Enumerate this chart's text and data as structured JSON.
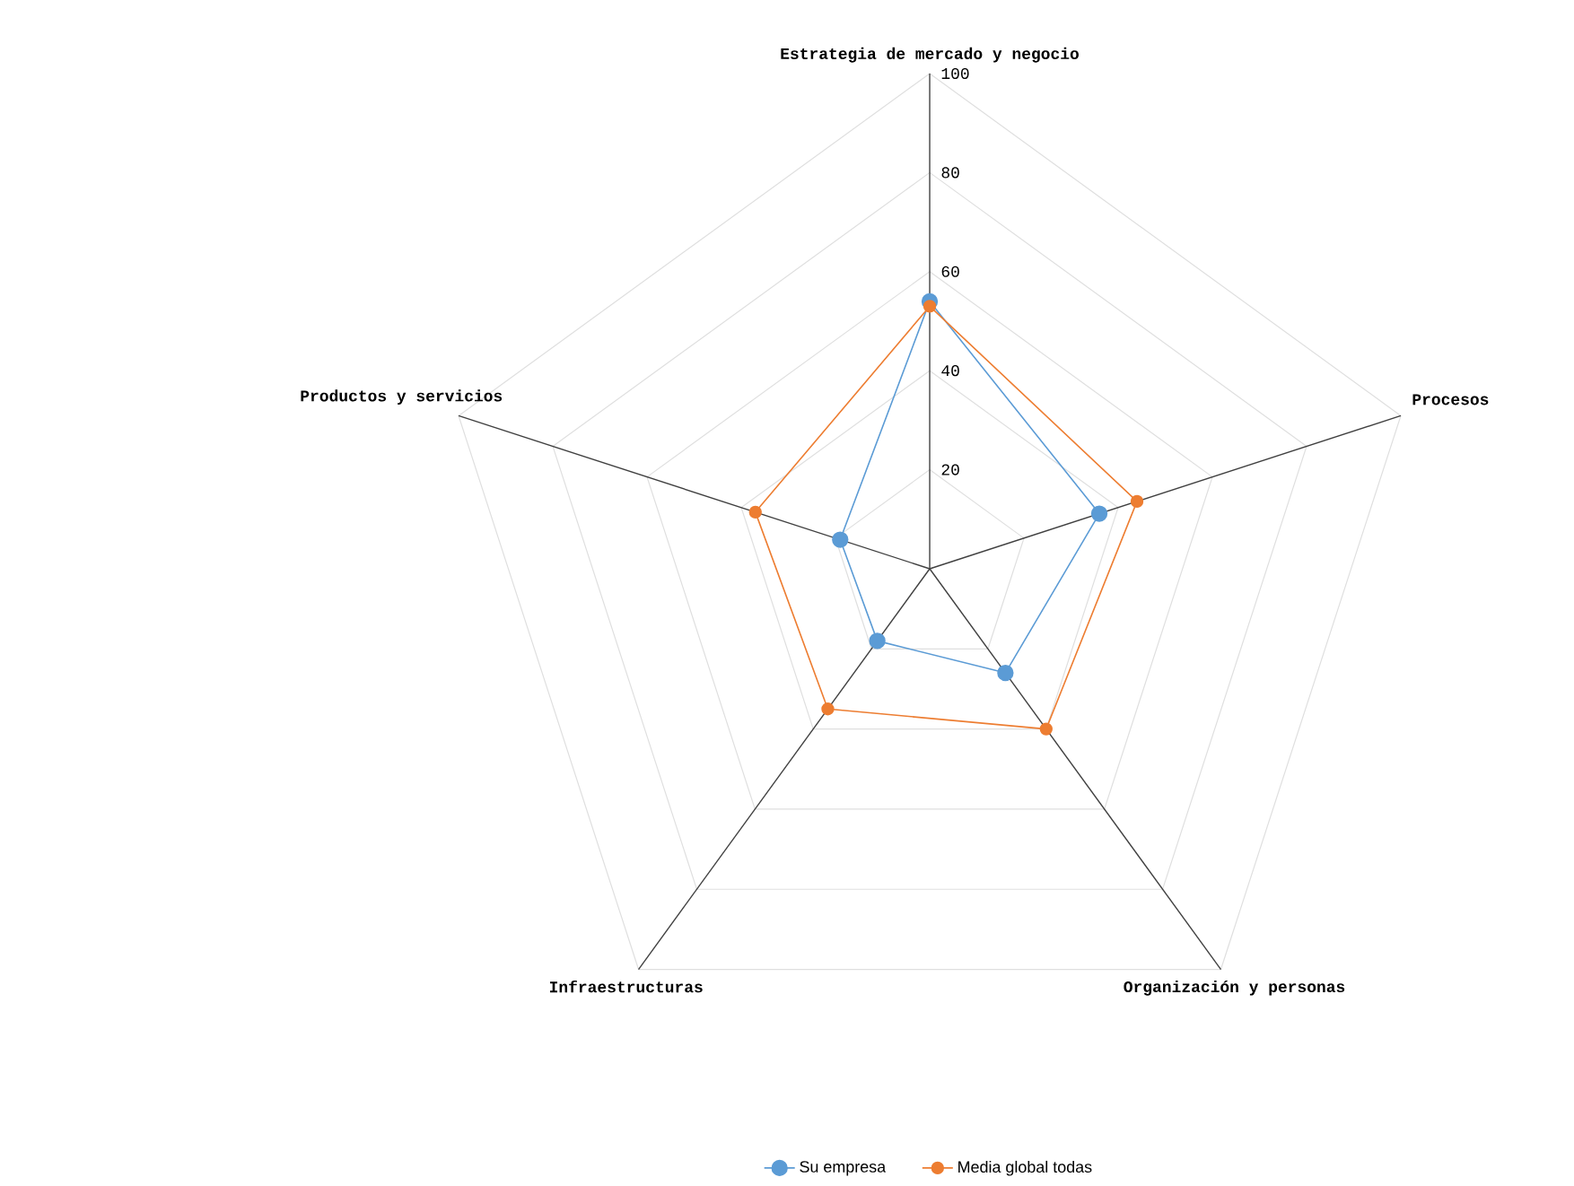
{
  "chart_data": {
    "type": "radar",
    "categories": [
      "Estrategia de mercado y negocio",
      "Procesos",
      "Organización y personas",
      "Infraestructuras",
      "Productos y servicios"
    ],
    "series": [
      {
        "name": "Su empresa",
        "color": "#5b9bd5",
        "values": [
          54,
          36,
          26,
          18,
          19
        ]
      },
      {
        "name": "Media global todas",
        "color": "#ed7d31",
        "values": [
          53,
          44,
          40,
          35,
          37
        ]
      }
    ],
    "ylim": [
      0,
      100
    ],
    "yticks": [
      20,
      40,
      60,
      80,
      100
    ],
    "grid": true,
    "legend": "bottom",
    "marker": "circle"
  }
}
